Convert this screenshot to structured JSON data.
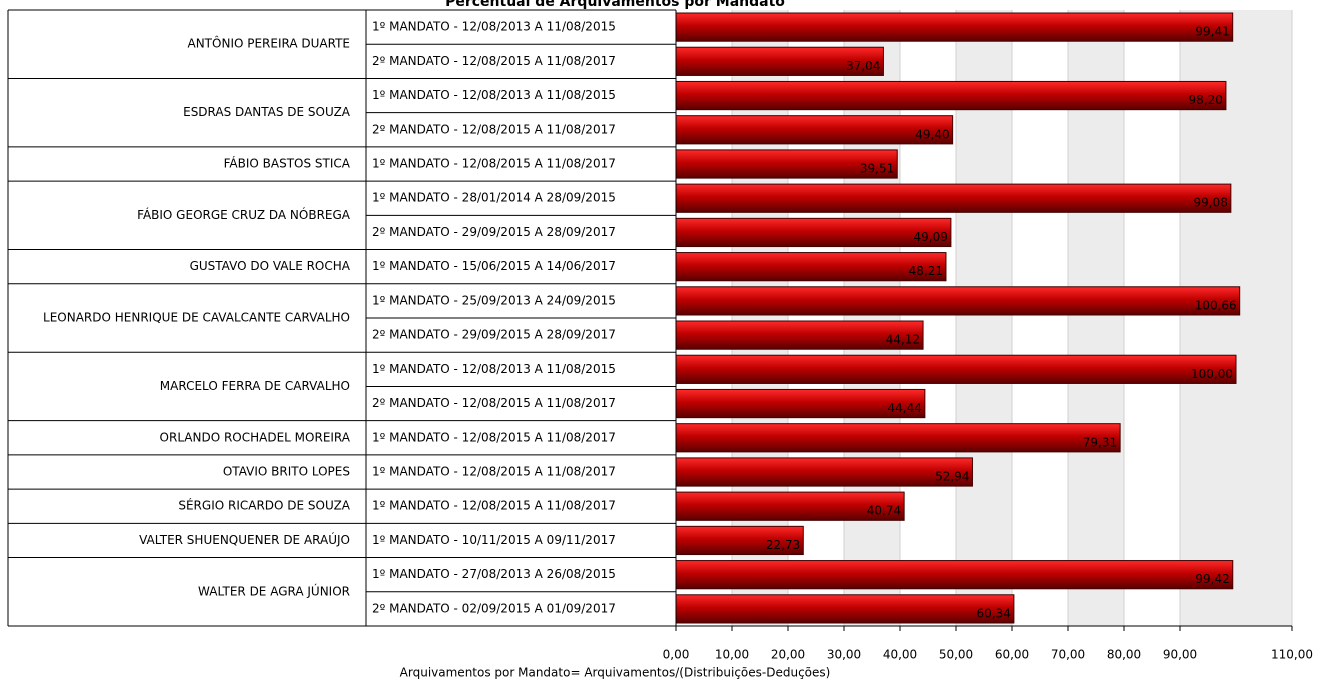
{
  "chart_data": {
    "type": "bar",
    "orientation": "horizontal",
    "title": "Percentual de Arquivamentos por Mandato",
    "x_label": "Arquivamentos por Mandato= Arquivamentos/(Distribuições-Deduções)",
    "color": "#c00000",
    "grid": true,
    "xlim": [
      0,
      110
    ],
    "xticks": [
      {
        "value": 0,
        "label": "0,00"
      },
      {
        "value": 10,
        "label": "10,00"
      },
      {
        "value": 20,
        "label": "20,00"
      },
      {
        "value": 30,
        "label": "30,00"
      },
      {
        "value": 40,
        "label": "40,00"
      },
      {
        "value": 50,
        "label": "50,00"
      },
      {
        "value": 60,
        "label": "60,00"
      },
      {
        "value": 70,
        "label": "70,00"
      },
      {
        "value": 80,
        "label": "80,00"
      },
      {
        "value": 90,
        "label": "90,00"
      },
      {
        "value": 110,
        "label": "110,00"
      }
    ],
    "groups": [
      {
        "name": "ANTÔNIO PEREIRA DUARTE",
        "categories": [
          "1º MANDATO - 12/08/2013 A 11/08/2015",
          "2º MANDATO - 12/08/2015 A 11/08/2017"
        ],
        "values": [
          99.41,
          37.04
        ],
        "value_labels": [
          "99,41",
          "37,04"
        ]
      },
      {
        "name": "ESDRAS DANTAS DE SOUZA",
        "categories": [
          "1º MANDATO - 12/08/2013 A 11/08/2015",
          "2º MANDATO - 12/08/2015 A 11/08/2017"
        ],
        "values": [
          98.2,
          49.4
        ],
        "value_labels": [
          "98,20",
          "49,40"
        ]
      },
      {
        "name": "FÁBIO BASTOS STICA",
        "categories": [
          "1º MANDATO - 12/08/2015 A 11/08/2017"
        ],
        "values": [
          39.51
        ],
        "value_labels": [
          "39,51"
        ]
      },
      {
        "name": "FÁBIO GEORGE CRUZ DA NÓBREGA",
        "categories": [
          "1º MANDATO - 28/01/2014 A 28/09/2015",
          "2º MANDATO - 29/09/2015 A 28/09/2017"
        ],
        "values": [
          99.08,
          49.09
        ],
        "value_labels": [
          "99,08",
          "49,09"
        ]
      },
      {
        "name": "GUSTAVO DO VALE ROCHA",
        "categories": [
          "1º MANDATO - 15/06/2015 A 14/06/2017"
        ],
        "values": [
          48.21
        ],
        "value_labels": [
          "48,21"
        ]
      },
      {
        "name": "LEONARDO HENRIQUE DE CAVALCANTE CARVALHO",
        "categories": [
          "1º MANDATO - 25/09/2013 A 24/09/2015",
          "2º MANDATO - 29/09/2015 A 28/09/2017"
        ],
        "values": [
          100.66,
          44.12
        ],
        "value_labels": [
          "100,66",
          "44,12"
        ]
      },
      {
        "name": "MARCELO FERRA DE CARVALHO",
        "categories": [
          "1º MANDATO - 12/08/2013 A 11/08/2015",
          "2º MANDATO - 12/08/2015 A 11/08/2017"
        ],
        "values": [
          100.0,
          44.44
        ],
        "value_labels": [
          "100,00",
          "44,44"
        ]
      },
      {
        "name": "ORLANDO ROCHADEL MOREIRA",
        "categories": [
          "1º MANDATO - 12/08/2015 A 11/08/2017"
        ],
        "values": [
          79.31
        ],
        "value_labels": [
          "79,31"
        ]
      },
      {
        "name": "OTAVIO BRITO LOPES",
        "categories": [
          "1º MANDATO - 12/08/2015 A 11/08/2017"
        ],
        "values": [
          52.94
        ],
        "value_labels": [
          "52,94"
        ]
      },
      {
        "name": "SÉRGIO RICARDO DE SOUZA",
        "categories": [
          "1º MANDATO - 12/08/2015 A 11/08/2017"
        ],
        "values": [
          40.74
        ],
        "value_labels": [
          "40,74"
        ]
      },
      {
        "name": "VALTER SHUENQUENER DE ARAÚJO",
        "categories": [
          "1º MANDATO - 10/11/2015 A 09/11/2017"
        ],
        "values": [
          22.73
        ],
        "value_labels": [
          "22,73"
        ]
      },
      {
        "name": "WALTER DE AGRA JÚNIOR",
        "categories": [
          "1º MANDATO - 27/08/2013 A 26/08/2015",
          "2º MANDATO - 02/09/2015 A 01/09/2017"
        ],
        "values": [
          99.42,
          60.34
        ],
        "value_labels": [
          "99,42",
          "60,34"
        ]
      }
    ]
  }
}
